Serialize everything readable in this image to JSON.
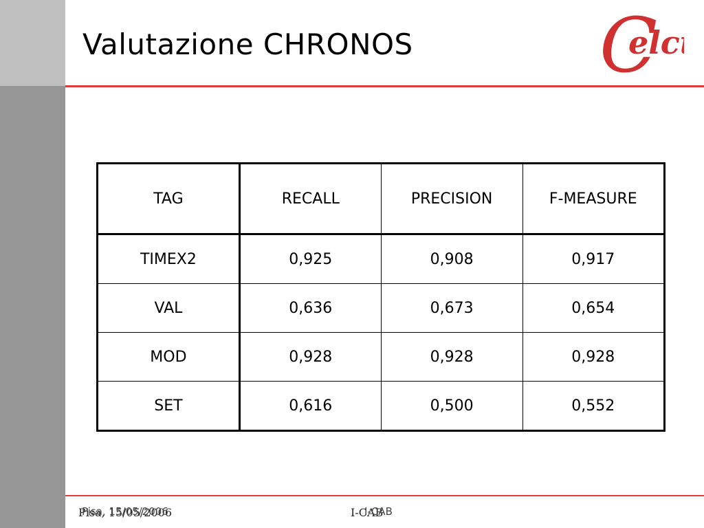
{
  "slide": {
    "title": "Valutazione CHRONOS"
  },
  "logo": {
    "text": "elct",
    "initial": "C",
    "color": "#d03030"
  },
  "table": {
    "headers": [
      "TAG",
      "RECALL",
      "PRECISION",
      "F-MEASURE"
    ],
    "rows": [
      [
        "TIMEX2",
        "0,925",
        "0,908",
        "0,917"
      ],
      [
        "VAL",
        "0,636",
        "0,673",
        "0,654"
      ],
      [
        "MOD",
        "0,928",
        "0,928",
        "0,928"
      ],
      [
        "SET",
        "0,616",
        "0,500",
        "0,552"
      ]
    ]
  },
  "footer": {
    "date": "Pisa, 15/05/2006",
    "project": "I-CAB"
  },
  "colors": {
    "accent_rule": "#e03a3a",
    "sidebar_light": "#c0c0c0",
    "sidebar_dark": "#969696"
  }
}
